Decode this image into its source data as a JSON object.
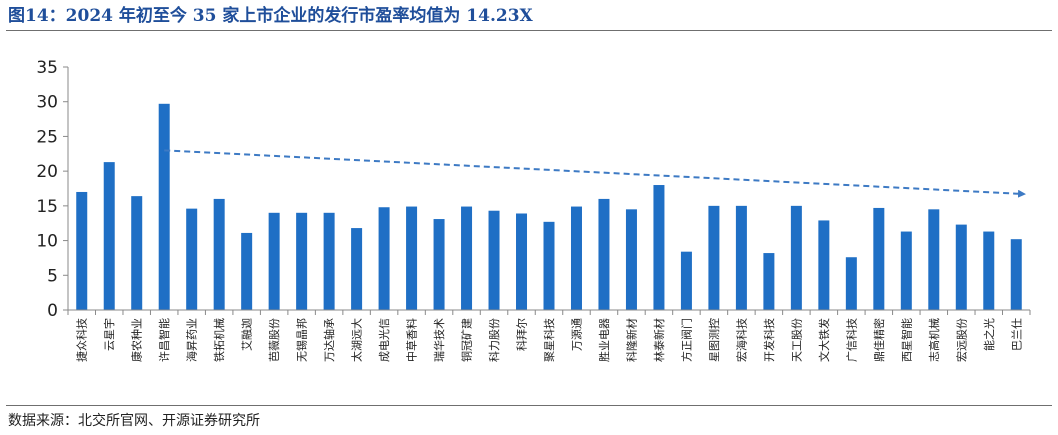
{
  "header": {
    "title": "图14：2024 年初至今 35 家上市企业的发行市盈率均值为 14.23X"
  },
  "footer": {
    "source": "数据来源：北交所官网、开源证券研究所"
  },
  "colors": {
    "bar": "#1f6fc5",
    "trend": "#3d7ac4",
    "axis": "#8a8a8a",
    "title": "#1f4e9a"
  },
  "chart_data": {
    "type": "bar",
    "categories": [
      "捷众科技",
      "云星宇",
      "康农种业",
      "许昌智能",
      "海昇药业",
      "铁拓机械",
      "艾融迦",
      "芭薇股份",
      "无锡晶邦",
      "万达轴承",
      "太湖远大",
      "成电光信",
      "中草香料",
      "瑞华技术",
      "铜冠矿建",
      "科力股份",
      "科拜尔",
      "聚星科技",
      "万源通",
      "胜业电器",
      "科隆新材",
      "林泰新材",
      "方正阀门",
      "星图测控",
      "宏海科技",
      "开发科技",
      "天工股份",
      "文大铁发",
      "广信科技",
      "鼎佳精密",
      "西星智能",
      "志高机械",
      "宏远股份",
      "能之光",
      "巴兰仕"
    ],
    "values": [
      17.0,
      21.3,
      16.4,
      29.7,
      14.6,
      16.0,
      11.1,
      14.0,
      14.0,
      14.0,
      11.8,
      14.8,
      14.9,
      13.1,
      14.9,
      14.3,
      13.9,
      12.7,
      14.9,
      16.0,
      14.5,
      18.0,
      8.4,
      15.0,
      15.0,
      8.2,
      15.0,
      12.9,
      7.6,
      14.7,
      11.3,
      14.5,
      12.3,
      11.3,
      10.2
    ],
    "yticks": [
      "0",
      "5",
      "10",
      "15",
      "20",
      "25",
      "30",
      "35"
    ],
    "ylim": [
      0,
      35
    ],
    "trend": {
      "from_category": "许昌智能",
      "from_value": 23.0,
      "to_value": 16.7
    },
    "grid": false,
    "legend": "none"
  }
}
